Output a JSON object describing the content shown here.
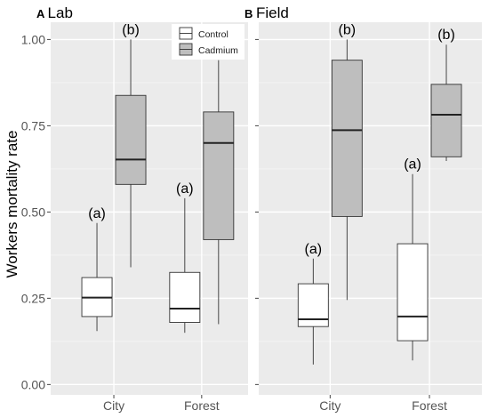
{
  "chart_data": {
    "type": "box",
    "ylabel": "Workers mortality rate",
    "ylim": [
      -0.03,
      1.05
    ],
    "y_ticks": [
      "0.00",
      "0.25",
      "0.50",
      "0.75",
      "1.00"
    ],
    "categories": [
      "City",
      "Forest"
    ],
    "legend": {
      "placement": "top-center",
      "entries": [
        {
          "name": "Control",
          "color": "#ffffff"
        },
        {
          "name": "Cadmium",
          "color": "#bebebe"
        }
      ]
    },
    "grid": true,
    "panels": [
      {
        "letter": "A",
        "title": "Lab",
        "boxes": [
          {
            "category": "City",
            "series": "Control",
            "whisker_low": 0.155,
            "q1": 0.197,
            "median": 0.252,
            "q3": 0.31,
            "whisker_high": 0.468,
            "annotation": "(a)"
          },
          {
            "category": "City",
            "series": "Cadmium",
            "whisker_low": 0.34,
            "q1": 0.58,
            "median": 0.652,
            "q3": 0.838,
            "whisker_high": 1.0,
            "annotation": "(b)"
          },
          {
            "category": "Forest",
            "series": "Control",
            "whisker_low": 0.15,
            "q1": 0.18,
            "median": 0.22,
            "q3": 0.325,
            "whisker_high": 0.54,
            "annotation": "(a)"
          },
          {
            "category": "Forest",
            "series": "Cadmium",
            "whisker_low": 0.175,
            "q1": 0.42,
            "median": 0.7,
            "q3": 0.79,
            "whisker_high": 0.94,
            "annotation": "(b)"
          }
        ]
      },
      {
        "letter": "B",
        "title": "Field",
        "boxes": [
          {
            "category": "City",
            "series": "Control",
            "whisker_low": 0.058,
            "q1": 0.168,
            "median": 0.189,
            "q3": 0.292,
            "whisker_high": 0.365,
            "annotation": "(a)"
          },
          {
            "category": "City",
            "series": "Cadmium",
            "whisker_low": 0.245,
            "q1": 0.487,
            "median": 0.737,
            "q3": 0.94,
            "whisker_high": 1.0,
            "annotation": "(b)"
          },
          {
            "category": "Forest",
            "series": "Control",
            "whisker_low": 0.07,
            "q1": 0.127,
            "median": 0.197,
            "q3": 0.408,
            "whisker_high": 0.61,
            "annotation": "(a)"
          },
          {
            "category": "Forest",
            "series": "Cadmium",
            "whisker_low": 0.648,
            "q1": 0.66,
            "median": 0.782,
            "q3": 0.87,
            "whisker_high": 0.985,
            "annotation": "(b)"
          }
        ]
      }
    ]
  }
}
